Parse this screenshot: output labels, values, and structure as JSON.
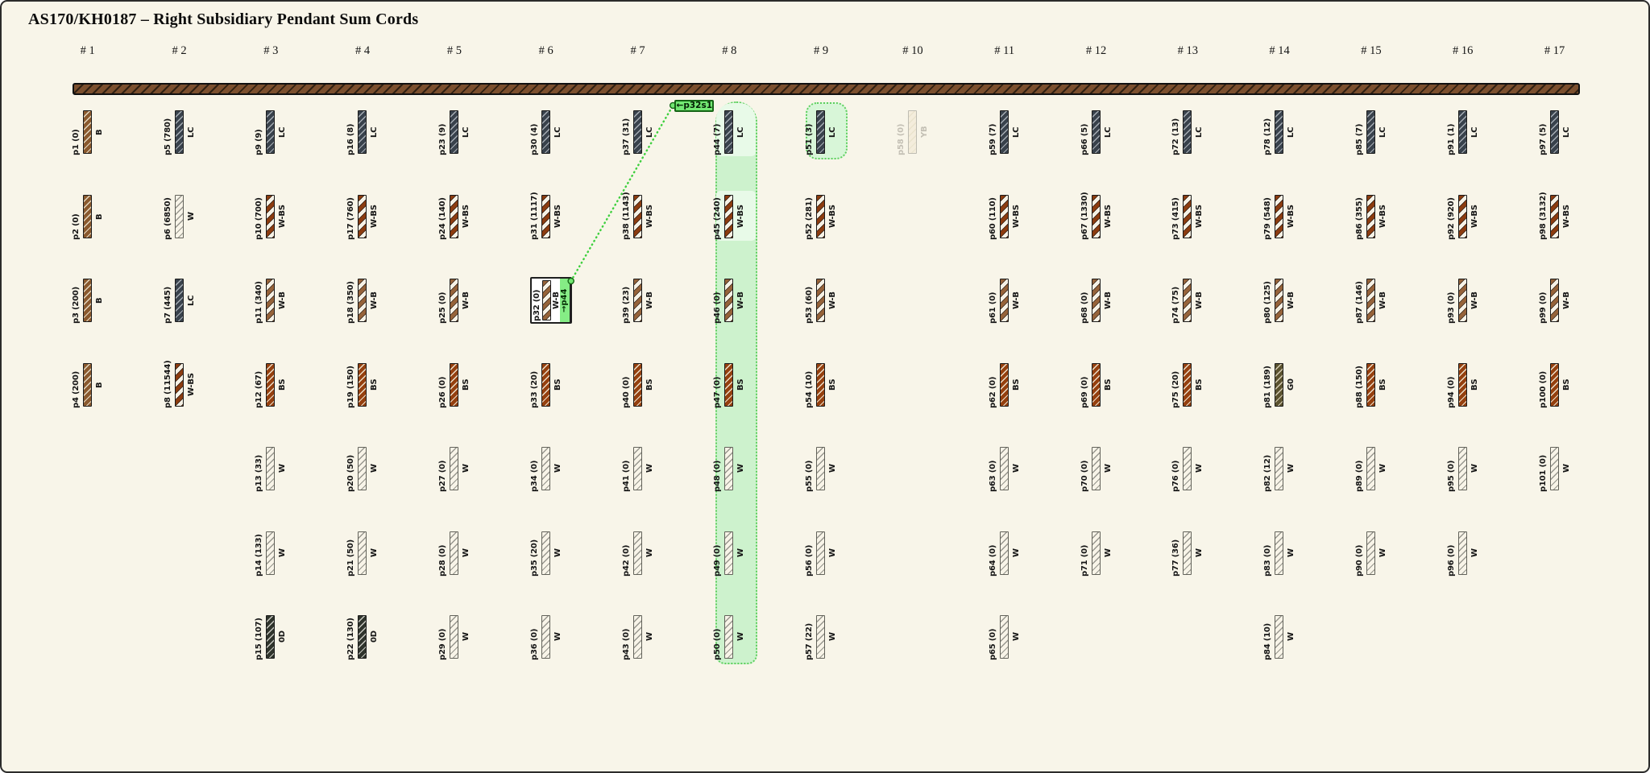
{
  "title": "AS170/KH0187 – Right Subsidiary Pendant Sum Cords",
  "columns": [
    {
      "header": "# 1",
      "pendants": [
        {
          "id": "p1",
          "value": 0,
          "code": "B"
        },
        {
          "id": "p2",
          "value": 0,
          "code": "B"
        },
        {
          "id": "p3",
          "value": 200,
          "code": "B"
        },
        {
          "id": "p4",
          "value": 200,
          "code": "B"
        }
      ]
    },
    {
      "header": "# 2",
      "pendants": [
        {
          "id": "p5",
          "value": 780,
          "code": "LC"
        },
        {
          "id": "p6",
          "value": 6850,
          "code": "W"
        },
        {
          "id": "p7",
          "value": 445,
          "code": "LC"
        },
        {
          "id": "p8",
          "value": 11544,
          "code": "W-BS"
        }
      ]
    },
    {
      "header": "# 3",
      "pendants": [
        {
          "id": "p9",
          "value": 9,
          "code": "LC"
        },
        {
          "id": "p10",
          "value": 700,
          "code": "W-BS"
        },
        {
          "id": "p11",
          "value": 340,
          "code": "W-B"
        },
        {
          "id": "p12",
          "value": 67,
          "code": "BS"
        },
        {
          "id": "p13",
          "value": 33,
          "code": "W"
        },
        {
          "id": "p14",
          "value": 133,
          "code": "W"
        },
        {
          "id": "p15",
          "value": 107,
          "code": "0D"
        }
      ]
    },
    {
      "header": "# 4",
      "pendants": [
        {
          "id": "p16",
          "value": 8,
          "code": "LC"
        },
        {
          "id": "p17",
          "value": 760,
          "code": "W-BS"
        },
        {
          "id": "p18",
          "value": 350,
          "code": "W-B"
        },
        {
          "id": "p19",
          "value": 150,
          "code": "BS"
        },
        {
          "id": "p20",
          "value": 50,
          "code": "W"
        },
        {
          "id": "p21",
          "value": 50,
          "code": "W"
        },
        {
          "id": "p22",
          "value": 130,
          "code": "0D"
        }
      ]
    },
    {
      "header": "# 5",
      "pendants": [
        {
          "id": "p23",
          "value": 9,
          "code": "LC"
        },
        {
          "id": "p24",
          "value": 140,
          "code": "W-BS"
        },
        {
          "id": "p25",
          "value": 0,
          "code": "W-B"
        },
        {
          "id": "p26",
          "value": 0,
          "code": "BS"
        },
        {
          "id": "p27",
          "value": 0,
          "code": "W"
        },
        {
          "id": "p28",
          "value": 0,
          "code": "W"
        },
        {
          "id": "p29",
          "value": 0,
          "code": "W"
        }
      ]
    },
    {
      "header": "# 6",
      "pendants": [
        {
          "id": "p30",
          "value": 4,
          "code": "LC"
        },
        {
          "id": "p31",
          "value": 1117,
          "code": "W-BS"
        },
        {
          "id": "p32",
          "value": 0,
          "code": "W-B"
        },
        {
          "id": "p33",
          "value": 20,
          "code": "BS"
        },
        {
          "id": "p34",
          "value": 0,
          "code": "W"
        },
        {
          "id": "p35",
          "value": 20,
          "code": "W"
        },
        {
          "id": "p36",
          "value": 0,
          "code": "W"
        }
      ]
    },
    {
      "header": "# 7",
      "pendants": [
        {
          "id": "p37",
          "value": 31,
          "code": "LC"
        },
        {
          "id": "p38",
          "value": 1143,
          "code": "W-BS"
        },
        {
          "id": "p39",
          "value": 23,
          "code": "W-B"
        },
        {
          "id": "p40",
          "value": 0,
          "code": "BS"
        },
        {
          "id": "p41",
          "value": 0,
          "code": "W"
        },
        {
          "id": "p42",
          "value": 0,
          "code": "W"
        },
        {
          "id": "p43",
          "value": 0,
          "code": "W"
        }
      ]
    },
    {
      "header": "# 8",
      "pendants": [
        {
          "id": "p44",
          "value": 7,
          "code": "LC"
        },
        {
          "id": "p45",
          "value": 240,
          "code": "W-BS"
        },
        {
          "id": "p46",
          "value": 0,
          "code": "W-B"
        },
        {
          "id": "p47",
          "value": 0,
          "code": "BS"
        },
        {
          "id": "p48",
          "value": 0,
          "code": "W"
        },
        {
          "id": "p49",
          "value": 0,
          "code": "W"
        },
        {
          "id": "p50",
          "value": 0,
          "code": "W"
        }
      ]
    },
    {
      "header": "# 9",
      "pendants": [
        {
          "id": "p51",
          "value": 3,
          "code": "LC"
        },
        {
          "id": "p52",
          "value": 281,
          "code": "W-BS"
        },
        {
          "id": "p53",
          "value": 60,
          "code": "W-B"
        },
        {
          "id": "p54",
          "value": 10,
          "code": "BS"
        },
        {
          "id": "p55",
          "value": 0,
          "code": "W"
        },
        {
          "id": "p56",
          "value": 0,
          "code": "W"
        },
        {
          "id": "p57",
          "value": 22,
          "code": "W"
        }
      ]
    },
    {
      "header": "# 10",
      "pendants": [
        {
          "id": "p58",
          "value": 0,
          "code": "YB"
        }
      ]
    },
    {
      "header": "# 11",
      "pendants": [
        {
          "id": "p59",
          "value": 7,
          "code": "LC"
        },
        {
          "id": "p60",
          "value": 110,
          "code": "W-BS"
        },
        {
          "id": "p61",
          "value": 0,
          "code": "W-B"
        },
        {
          "id": "p62",
          "value": 0,
          "code": "BS"
        },
        {
          "id": "p63",
          "value": 0,
          "code": "W"
        },
        {
          "id": "p64",
          "value": 0,
          "code": "W"
        },
        {
          "id": "p65",
          "value": 0,
          "code": "W"
        }
      ]
    },
    {
      "header": "# 12",
      "pendants": [
        {
          "id": "p66",
          "value": 5,
          "code": "LC"
        },
        {
          "id": "p67",
          "value": 1330,
          "code": "W-BS"
        },
        {
          "id": "p68",
          "value": 0,
          "code": "W-B"
        },
        {
          "id": "p69",
          "value": 0,
          "code": "BS"
        },
        {
          "id": "p70",
          "value": 0,
          "code": "W"
        },
        {
          "id": "p71",
          "value": 0,
          "code": "W"
        }
      ]
    },
    {
      "header": "# 13",
      "pendants": [
        {
          "id": "p72",
          "value": 13,
          "code": "LC"
        },
        {
          "id": "p73",
          "value": 415,
          "code": "W-BS"
        },
        {
          "id": "p74",
          "value": 75,
          "code": "W-B"
        },
        {
          "id": "p75",
          "value": 20,
          "code": "BS"
        },
        {
          "id": "p76",
          "value": 0,
          "code": "W"
        },
        {
          "id": "p77",
          "value": 36,
          "code": "W"
        }
      ]
    },
    {
      "header": "# 14",
      "pendants": [
        {
          "id": "p78",
          "value": 12,
          "code": "LC"
        },
        {
          "id": "p79",
          "value": 548,
          "code": "W-BS"
        },
        {
          "id": "p80",
          "value": 125,
          "code": "W-B"
        },
        {
          "id": "p81",
          "value": 189,
          "code": "G0"
        },
        {
          "id": "p82",
          "value": 12,
          "code": "W"
        },
        {
          "id": "p83",
          "value": 0,
          "code": "W"
        },
        {
          "id": "p84",
          "value": 10,
          "code": "W"
        }
      ]
    },
    {
      "header": "# 15",
      "pendants": [
        {
          "id": "p85",
          "value": 7,
          "code": "LC"
        },
        {
          "id": "p86",
          "value": 355,
          "code": "W-BS"
        },
        {
          "id": "p87",
          "value": 146,
          "code": "W-B"
        },
        {
          "id": "p88",
          "value": 150,
          "code": "BS"
        },
        {
          "id": "p89",
          "value": 0,
          "code": "W"
        },
        {
          "id": "p90",
          "value": 0,
          "code": "W"
        }
      ]
    },
    {
      "header": "# 16",
      "pendants": [
        {
          "id": "p91",
          "value": 1,
          "code": "LC"
        },
        {
          "id": "p92",
          "value": 920,
          "code": "W-BS"
        },
        {
          "id": "p93",
          "value": 0,
          "code": "W-B"
        },
        {
          "id": "p94",
          "value": 0,
          "code": "BS"
        },
        {
          "id": "p95",
          "value": 0,
          "code": "W"
        },
        {
          "id": "p96",
          "value": 0,
          "code": "W"
        }
      ]
    },
    {
      "header": "# 17",
      "pendants": [
        {
          "id": "p97",
          "value": 5,
          "code": "LC"
        },
        {
          "id": "p98",
          "value": 3132,
          "code": "W-BS"
        },
        {
          "id": "p99",
          "value": 0,
          "code": "W-B"
        },
        {
          "id": "p100",
          "value": 0,
          "code": "BS"
        },
        {
          "id": "p101",
          "value": 0,
          "code": "W"
        }
      ]
    }
  ],
  "palette": {
    "B": {
      "band": "#8a592e",
      "line": "#e3d8c2"
    },
    "LC": {
      "band": "#39424c",
      "line": "#a7aeb5"
    },
    "W": {
      "band": "#f8f4e8",
      "line": "#97968e",
      "light_border": true
    },
    "BS": {
      "band": "#95400f",
      "line": "#ecdfca"
    },
    "0D": {
      "band": "#2f342c",
      "line": "#c9c9c2"
    },
    "G0": {
      "band": "#5a522f",
      "line": "#d6cdb4"
    },
    "YB": {
      "band": "#efe2c8",
      "line": "#d6c6a2",
      "light_border": true
    },
    "W-BS": {
      "bandA": "#f6f1e5",
      "bandB": "#8c3c10",
      "edge": "#24150a"
    },
    "W-B": {
      "bandA": "#f6f1e5",
      "bandB": "#96633a",
      "edge": "#2a1c10"
    }
  },
  "annotations": {
    "link_label": "←p32s1",
    "source_tag": "→p44",
    "source_pendant": "p32",
    "target_pendant": "p44",
    "sum_column_header": "# 8",
    "sum_column_index": 8,
    "highlighted_cells": [
      "p44",
      "p45"
    ],
    "highlighted_pendant": "p51",
    "faded_pendant": "p58",
    "greens": {
      "column_fill": "#cdf2cd",
      "cell_fill": "#e8fae8",
      "pendant_fill": "#d8f6d8",
      "dotted_border": "#5ecf5e",
      "connector": "#3ecf3e",
      "label_fill": "#72e872",
      "label_border": "#156415",
      "tag_fill": "#85ec85"
    }
  }
}
